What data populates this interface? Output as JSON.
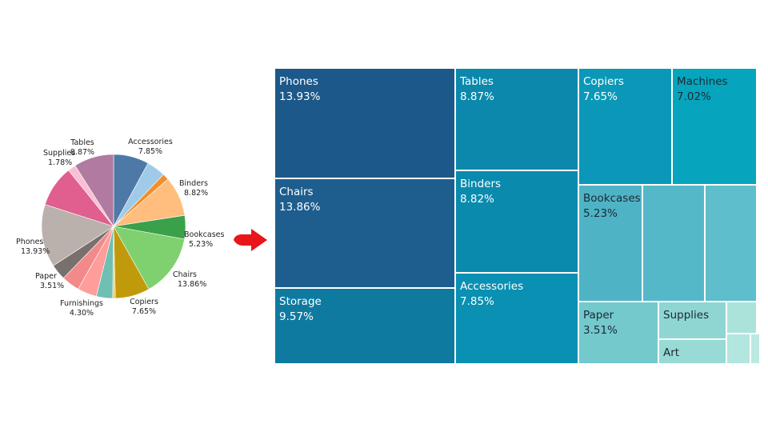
{
  "chart_data": [
    {
      "type": "pie",
      "slices": [
        {
          "label": "Accessories",
          "value": 7.85,
          "value_text": "7.85%",
          "color": "#4e79a7"
        },
        {
          "label": "",
          "value": 4.2,
          "value_text": "",
          "color": "#a0cbe8"
        },
        {
          "label": "",
          "value": 1.4,
          "value_text": "",
          "color": "#f28e2b"
        },
        {
          "label": "Binders",
          "value": 8.82,
          "value_text": "8.82%",
          "color": "#ffbe7d"
        },
        {
          "label": "Bookcases",
          "value": 5.23,
          "value_text": "5.23%",
          "color": "#3ba04a"
        },
        {
          "label": "Chairs",
          "value": 13.86,
          "value_text": "13.86%",
          "color": "#7fd16f"
        },
        {
          "label": "Copiers",
          "value": 7.65,
          "value_text": "7.65%",
          "color": "#c09a0a"
        },
        {
          "label": "",
          "value": 0.6,
          "value_text": "",
          "color": "#f1ce63"
        },
        {
          "label": "",
          "value": 3.6,
          "value_text": "",
          "color": "#6fbfb3"
        },
        {
          "label": "Furnishings",
          "value": 4.3,
          "value_text": "4.30%",
          "color": "#ff9d9a"
        },
        {
          "label": "",
          "value": 4.0,
          "value_text": "",
          "color": "#f28a89"
        },
        {
          "label": "Paper",
          "value": 3.51,
          "value_text": "3.51%",
          "color": "#79706e"
        },
        {
          "label": "Phones",
          "value": 13.93,
          "value_text": "13.93%",
          "color": "#bab0ac"
        },
        {
          "label": "",
          "value": 9.2,
          "value_text": "",
          "color": "#e05f8e"
        },
        {
          "label": "Supplies",
          "value": 1.78,
          "value_text": "1.78%",
          "color": "#fabfd2"
        },
        {
          "label": "Tables",
          "value": 8.87,
          "value_text": "8.87%",
          "color": "#b07aa1"
        }
      ]
    },
    {
      "type": "treemap",
      "tiles": [
        {
          "name": "Phones",
          "pct": "13.93%",
          "value": 13.93,
          "color": "#1c5889",
          "text": "#ffffff"
        },
        {
          "name": "Chairs",
          "pct": "13.86%",
          "value": 13.86,
          "color": "#1e5e8e",
          "text": "#ffffff"
        },
        {
          "name": "Storage",
          "pct": "9.57%",
          "value": 9.57,
          "color": "#0f7aa0",
          "text": "#ffffff"
        },
        {
          "name": "Tables",
          "pct": "8.87%",
          "value": 8.87,
          "color": "#0b88ac",
          "text": "#ffffff"
        },
        {
          "name": "Binders",
          "pct": "8.82%",
          "value": 8.82,
          "color": "#0a8aad",
          "text": "#ffffff"
        },
        {
          "name": "Accessories",
          "pct": "7.85%",
          "value": 7.85,
          "color": "#0a90b2",
          "text": "#ffffff"
        },
        {
          "name": "Copiers",
          "pct": "7.65%",
          "value": 7.65,
          "color": "#0b98b8",
          "text": "#ffffff"
        },
        {
          "name": "Machines",
          "pct": "7.02%",
          "value": 7.02,
          "color": "#07a5bd",
          "text": "#1a2a33"
        },
        {
          "name": "Bookcases",
          "pct": "5.23%",
          "value": 5.23,
          "color": "#4fb3c6",
          "text": "#1a2a33"
        },
        {
          "name": "",
          "pct": "",
          "value": 4.3,
          "color": "#55b8c9",
          "text": "#1a2a33"
        },
        {
          "name": "",
          "pct": "",
          "value": 4.1,
          "color": "#5ebecb",
          "text": "#1a2a33"
        },
        {
          "name": "Paper",
          "pct": "3.51%",
          "value": 3.51,
          "color": "#74c9cd",
          "text": "#1a2a33"
        },
        {
          "name": "Supplies",
          "pct": "",
          "value": 1.78,
          "color": "#8fd6d3",
          "text": "#1a2a33"
        },
        {
          "name": "Art",
          "pct": "",
          "value": 1.6,
          "color": "#98dad5",
          "text": "#1a2a33"
        },
        {
          "name": "",
          "pct": "",
          "value": 0.9,
          "color": "#abe3db",
          "text": "#1a2a33"
        },
        {
          "name": "",
          "pct": "",
          "value": 0.6,
          "color": "#b2e6de",
          "text": "#1a2a33"
        },
        {
          "name": "",
          "pct": "",
          "value": 0.2,
          "color": "#bbe9e1",
          "text": "#1a2a33"
        }
      ]
    }
  ],
  "arrow": {
    "icon": "right-arrow-icon",
    "color": "#e8151b"
  }
}
